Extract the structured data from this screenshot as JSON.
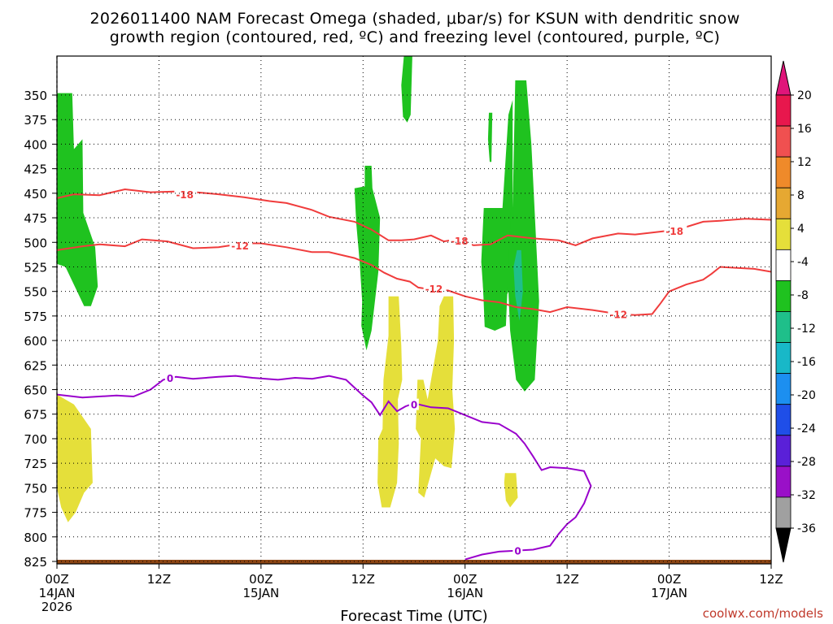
{
  "title_line1": "2026011400 NAM Forecast Omega (shaded, μbar/s) for KSUN with dendritic snow",
  "title_line2": "growth region (contoured, red, ºC) and freezing level (contoured, purple, ºC)",
  "xlabel": "Forecast Time (UTC)",
  "credit": "coolwx.com/models",
  "chart_data": {
    "type": "contour",
    "x_unit": "forecast hour",
    "xlim": [
      0,
      84
    ],
    "y_unit": "hPa",
    "ylim": [
      830,
      315
    ],
    "x_ticks": [
      {
        "hour": 0,
        "label": "00Z",
        "date": "14JAN",
        "year": "2026"
      },
      {
        "hour": 12,
        "label": "12Z",
        "date": "",
        "year": ""
      },
      {
        "hour": 24,
        "label": "00Z",
        "date": "15JAN",
        "year": ""
      },
      {
        "hour": 36,
        "label": "12Z",
        "date": "",
        "year": ""
      },
      {
        "hour": 48,
        "label": "00Z",
        "date": "16JAN",
        "year": ""
      },
      {
        "hour": 60,
        "label": "12Z",
        "date": "",
        "year": ""
      },
      {
        "hour": 72,
        "label": "00Z",
        "date": "17JAN",
        "year": ""
      },
      {
        "hour": 84,
        "label": "12Z",
        "date": "",
        "year": ""
      }
    ],
    "y_ticks": [
      350,
      375,
      400,
      425,
      450,
      475,
      500,
      525,
      550,
      575,
      600,
      625,
      650,
      675,
      700,
      725,
      750,
      775,
      800,
      825
    ],
    "grid": true,
    "colorbar": {
      "labels": [
        "20",
        "16",
        "12",
        "8",
        "4",
        "-4",
        "-8",
        "-12",
        "-16",
        "-20",
        "-24",
        "-28",
        "-32",
        "-36"
      ],
      "colors": [
        "#e8174d",
        "#f05050",
        "#ef8a2a",
        "#e6a832",
        "#e5df3a",
        "#ffffff",
        "#1fc21f",
        "#1fbf8a",
        "#18b8c8",
        "#1c8ff0",
        "#1f4ee8",
        "#5a20d8",
        "#9a10c8",
        "#a0a0a0"
      ],
      "top_arrow_color": "#e0157a",
      "bottom_arrow_color": "#000000"
    },
    "omega_regions": [
      {
        "name": "green-early",
        "color": "#1fc21f",
        "points": [
          [
            0,
            348
          ],
          [
            1.8,
            348
          ],
          [
            2,
            405
          ],
          [
            3,
            395
          ],
          [
            3.1,
            470
          ],
          [
            4.5,
            505
          ],
          [
            4.8,
            545
          ],
          [
            4,
            565
          ],
          [
            3.2,
            565
          ],
          [
            1,
            525
          ],
          [
            0,
            522
          ]
        ]
      },
      {
        "name": "green-narrow-top",
        "color": "#1fc21f",
        "points": [
          [
            40.8,
            303
          ],
          [
            41.8,
            303
          ],
          [
            41.6,
            370
          ],
          [
            41.2,
            378
          ],
          [
            40.7,
            372
          ],
          [
            40.5,
            340
          ]
        ]
      },
      {
        "name": "green-mid",
        "color": "#1fc21f",
        "points": [
          [
            36.2,
            422
          ],
          [
            37,
            422
          ],
          [
            37.1,
            445
          ],
          [
            38,
            475
          ],
          [
            37.8,
            530
          ],
          [
            37,
            590
          ],
          [
            36.4,
            610
          ],
          [
            35.8,
            585
          ],
          [
            35.9,
            560
          ],
          [
            35.6,
            520
          ],
          [
            35.2,
            480
          ],
          [
            35,
            445
          ],
          [
            36.2,
            443
          ]
        ]
      },
      {
        "name": "green-sliver",
        "color": "#1fc21f",
        "points": [
          [
            50.8,
            368
          ],
          [
            51.2,
            368
          ],
          [
            51.1,
            418
          ],
          [
            50.9,
            418
          ],
          [
            50.7,
            395
          ]
        ]
      },
      {
        "name": "green-big",
        "color": "#1fc21f",
        "points": [
          [
            53.9,
            335
          ],
          [
            55.2,
            335
          ],
          [
            55.8,
            400
          ],
          [
            56.7,
            560
          ],
          [
            56.2,
            640
          ],
          [
            55,
            652
          ],
          [
            54,
            640
          ],
          [
            53.3,
            590
          ],
          [
            53.1,
            550
          ],
          [
            52.6,
            560
          ],
          [
            52.8,
            580
          ],
          [
            50.4,
            582
          ],
          [
            49.9,
            520
          ],
          [
            50.2,
            465
          ],
          [
            52.1,
            465
          ],
          [
            52.4,
            465
          ],
          [
            53.1,
            370
          ],
          [
            53.6,
            355
          ],
          [
            53.6,
            465
          ]
        ]
      },
      {
        "name": "green-left-of-big",
        "color": "#1fc21f",
        "points": [
          [
            50.4,
            465
          ],
          [
            53.4,
            465
          ],
          [
            52.8,
            585
          ],
          [
            51.5,
            590
          ],
          [
            50.3,
            586
          ],
          [
            50,
            520
          ]
        ]
      },
      {
        "name": "teal-core",
        "color": "#1fbf8a",
        "points": [
          [
            54.1,
            508
          ],
          [
            54.6,
            508
          ],
          [
            54.8,
            550
          ],
          [
            54.4,
            580
          ],
          [
            53.9,
            555
          ],
          [
            53.7,
            525
          ]
        ]
      },
      {
        "name": "yellow-low-left",
        "color": "#e5df3a",
        "points": [
          [
            0,
            655
          ],
          [
            2,
            665
          ],
          [
            4,
            690
          ],
          [
            4.2,
            745
          ],
          [
            3.2,
            755
          ],
          [
            2.2,
            775
          ],
          [
            1.3,
            785
          ],
          [
            0.5,
            770
          ],
          [
            0,
            750
          ]
        ]
      },
      {
        "name": "yellow-mid-a",
        "color": "#e5df3a",
        "points": [
          [
            39,
            555
          ],
          [
            40.2,
            555
          ],
          [
            40.5,
            605
          ],
          [
            40.6,
            640
          ],
          [
            40.1,
            660
          ],
          [
            40.2,
            705
          ],
          [
            40,
            745
          ],
          [
            39.2,
            770
          ],
          [
            38.2,
            770
          ],
          [
            37.7,
            745
          ],
          [
            37.8,
            700
          ],
          [
            38.3,
            690
          ],
          [
            38.4,
            640
          ],
          [
            39,
            595
          ]
        ]
      },
      {
        "name": "yellow-mid-b",
        "color": "#e5df3a",
        "points": [
          [
            45.5,
            555
          ],
          [
            46.6,
            555
          ],
          [
            46.7,
            600
          ],
          [
            46.5,
            650
          ],
          [
            46.8,
            690
          ],
          [
            46.4,
            730
          ],
          [
            45.5,
            728
          ],
          [
            44.5,
            720
          ],
          [
            43.2,
            760
          ],
          [
            42.5,
            755
          ],
          [
            42.8,
            700
          ],
          [
            42.2,
            690
          ],
          [
            42.4,
            640
          ],
          [
            43.1,
            640
          ],
          [
            43.6,
            660
          ],
          [
            44.8,
            600
          ],
          [
            45,
            565
          ]
        ]
      },
      {
        "name": "yellow-small",
        "color": "#e5df3a",
        "points": [
          [
            52.7,
            735
          ],
          [
            54,
            735
          ],
          [
            54.2,
            760
          ],
          [
            53.3,
            770
          ],
          [
            52.8,
            763
          ],
          [
            52.6,
            745
          ]
        ]
      }
    ],
    "series": [
      {
        "name": "-18",
        "color": "#f03c3c",
        "points": [
          [
            0,
            455
          ],
          [
            2,
            451
          ],
          [
            5,
            452
          ],
          [
            8,
            446
          ],
          [
            11,
            449
          ],
          [
            15,
            448
          ],
          [
            19,
            451
          ],
          [
            22,
            454
          ],
          [
            25,
            458
          ],
          [
            27,
            460
          ],
          [
            30,
            467
          ],
          [
            32,
            474
          ],
          [
            35,
            479
          ],
          [
            37,
            487
          ],
          [
            39,
            498
          ],
          [
            40.5,
            498
          ],
          [
            42,
            497
          ],
          [
            44,
            493
          ],
          [
            45.5,
            499
          ],
          [
            47,
            497
          ],
          [
            49,
            503
          ],
          [
            51,
            502
          ],
          [
            53,
            493
          ],
          [
            56,
            496
          ],
          [
            59,
            498
          ],
          [
            61,
            503
          ],
          [
            63,
            496
          ],
          [
            66,
            491
          ],
          [
            68,
            492
          ],
          [
            70,
            490
          ],
          [
            73,
            487
          ],
          [
            76,
            479
          ],
          [
            78,
            478
          ],
          [
            81,
            476
          ],
          [
            84,
            477
          ]
        ],
        "labels": [
          {
            "x": 14,
            "p": 451
          },
          {
            "x": 46.3,
            "p": 498
          },
          {
            "x": 71.6,
            "p": 488
          }
        ]
      },
      {
        "name": "-12",
        "color": "#f03c3c",
        "points": [
          [
            0,
            508
          ],
          [
            3,
            504
          ],
          [
            5,
            502
          ],
          [
            8,
            504
          ],
          [
            10,
            497
          ],
          [
            13,
            499
          ],
          [
            16,
            506
          ],
          [
            19,
            505
          ],
          [
            22,
            501
          ],
          [
            24,
            501
          ],
          [
            27,
            505
          ],
          [
            30,
            510
          ],
          [
            32,
            510
          ],
          [
            35,
            516
          ],
          [
            37,
            523
          ],
          [
            38.5,
            531
          ],
          [
            40,
            537
          ],
          [
            41.5,
            540
          ],
          [
            42.5,
            546
          ],
          [
            44,
            548
          ],
          [
            46,
            549
          ],
          [
            48,
            555
          ],
          [
            50,
            559
          ],
          [
            52,
            561
          ],
          [
            54,
            566
          ],
          [
            56,
            568
          ],
          [
            58,
            571
          ],
          [
            60,
            566
          ],
          [
            63,
            569
          ],
          [
            66,
            573
          ],
          [
            68,
            574
          ],
          [
            70,
            573
          ],
          [
            71,
            562
          ],
          [
            72,
            550
          ],
          [
            74,
            543
          ],
          [
            76,
            538
          ],
          [
            77,
            532
          ],
          [
            78,
            525
          ],
          [
            80,
            526
          ],
          [
            82,
            527
          ],
          [
            84,
            530
          ]
        ],
        "labels": [
          {
            "x": 20.5,
            "p": 503
          },
          {
            "x": 43.3,
            "p": 547
          },
          {
            "x": 65,
            "p": 573
          }
        ]
      },
      {
        "name": "0",
        "color": "#9900cc",
        "points": [
          [
            0,
            655
          ],
          [
            3,
            658
          ],
          [
            7,
            656
          ],
          [
            9,
            657
          ],
          [
            11,
            650
          ],
          [
            12.5,
            640
          ],
          [
            14,
            637
          ],
          [
            16,
            639
          ],
          [
            19,
            637
          ],
          [
            21,
            636
          ],
          [
            23,
            638
          ],
          [
            26,
            640
          ],
          [
            28,
            638
          ],
          [
            30,
            639
          ],
          [
            32,
            636
          ],
          [
            34,
            640
          ],
          [
            35,
            648
          ],
          [
            36,
            656
          ],
          [
            37,
            663
          ],
          [
            38,
            676
          ],
          [
            39,
            662
          ],
          [
            40,
            672
          ],
          [
            41,
            667
          ],
          [
            42,
            664
          ],
          [
            44,
            668
          ],
          [
            46,
            669
          ],
          [
            48,
            676
          ],
          [
            50,
            683
          ],
          [
            52,
            685
          ],
          [
            54,
            695
          ],
          [
            55,
            705
          ],
          [
            56,
            718
          ],
          [
            57,
            732
          ],
          [
            58,
            729
          ],
          [
            60,
            730
          ],
          [
            62,
            733
          ],
          [
            62.8,
            748
          ],
          [
            62,
            766
          ],
          [
            61,
            780
          ],
          [
            60,
            787
          ],
          [
            59,
            797
          ],
          [
            58,
            809
          ],
          [
            56,
            813
          ],
          [
            54,
            814
          ],
          [
            52,
            815
          ],
          [
            50,
            818
          ],
          [
            48,
            823
          ]
        ],
        "labels": [
          {
            "x": 12.9,
            "p": 638
          },
          {
            "x": 41.6,
            "p": 665
          },
          {
            "x": 53.8,
            "p": 814
          }
        ]
      }
    ],
    "terrain": {
      "color": "#8b4513",
      "top_p": 825
    }
  }
}
